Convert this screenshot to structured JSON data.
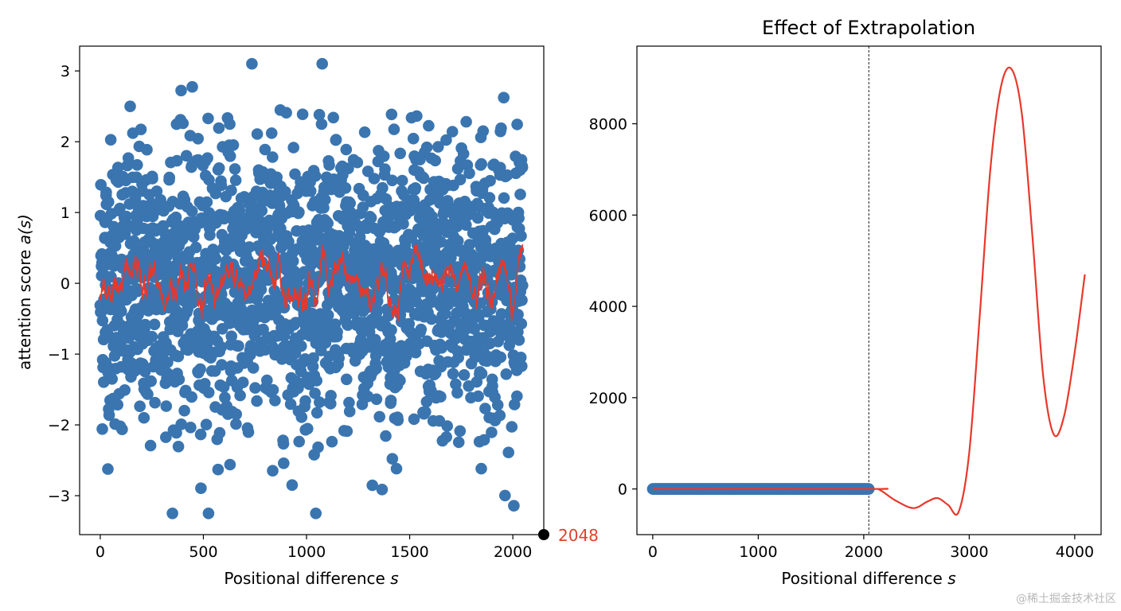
{
  "chart_data": [
    {
      "type": "scatter",
      "title": "",
      "xlabel": "Positional difference s",
      "ylabel": "attention score a(s)",
      "xlim": [
        -100,
        2150
      ],
      "ylim": [
        -3.55,
        3.35
      ],
      "xticks": [
        0,
        500,
        1000,
        1500,
        2000
      ],
      "xtick_labels": [
        "0",
        "500",
        "1000",
        "1500",
        "2000"
      ],
      "yticks": [
        3,
        2,
        1,
        0,
        -1,
        -2,
        -3
      ],
      "ytick_labels": [
        "3",
        "2",
        "1",
        "0",
        "−1",
        "−2",
        "−3"
      ],
      "series": [
        {
          "name": "attention scores",
          "kind": "scatter",
          "color": "#3a75b0",
          "n_points": 2048,
          "x_range": [
            0,
            2047
          ],
          "mean": 0,
          "std": 1
        },
        {
          "name": "moving average",
          "kind": "line",
          "color": "#e8382b",
          "n_points": 2048,
          "x_range": [
            0,
            2047
          ],
          "approx_range": [
            -0.5,
            0.65
          ]
        }
      ],
      "annotation": {
        "text": "2048",
        "x": 2150,
        "y": -3.55,
        "marker_color": "#000000",
        "text_color": "#e04030"
      }
    },
    {
      "type": "line",
      "title": "Effect of Extrapolation",
      "xlabel": "Positional difference s",
      "ylabel": "",
      "xlim": [
        -150,
        4250
      ],
      "ylim": [
        -1000,
        9700
      ],
      "xticks": [
        0,
        1000,
        2000,
        3000,
        4000
      ],
      "xtick_labels": [
        "0",
        "1000",
        "2000",
        "3000",
        "4000"
      ],
      "yticks": [
        0,
        2000,
        4000,
        6000,
        8000
      ],
      "ytick_labels": [
        "0",
        "2000",
        "4000",
        "6000",
        "8000"
      ],
      "vline_x": 2048,
      "series": [
        {
          "name": "extrapolated curve",
          "kind": "line",
          "color": "#e8382b",
          "x": [
            0,
            2048,
            2150,
            2300,
            2470,
            2600,
            2700,
            2800,
            2900,
            3000,
            3100,
            3200,
            3300,
            3400,
            3500,
            3600,
            3700,
            3800,
            3900,
            4000,
            4096
          ],
          "y": [
            0,
            0,
            -20,
            -250,
            -420,
            -280,
            -200,
            -350,
            -500,
            800,
            3800,
            7000,
            8800,
            9200,
            8200,
            5500,
            2500,
            1200,
            1600,
            3000,
            4700
          ]
        },
        {
          "name": "training points",
          "kind": "scatter",
          "color": "#3a75b0",
          "x_range": [
            0,
            2048
          ],
          "y_value": 0
        }
      ]
    }
  ]
}
